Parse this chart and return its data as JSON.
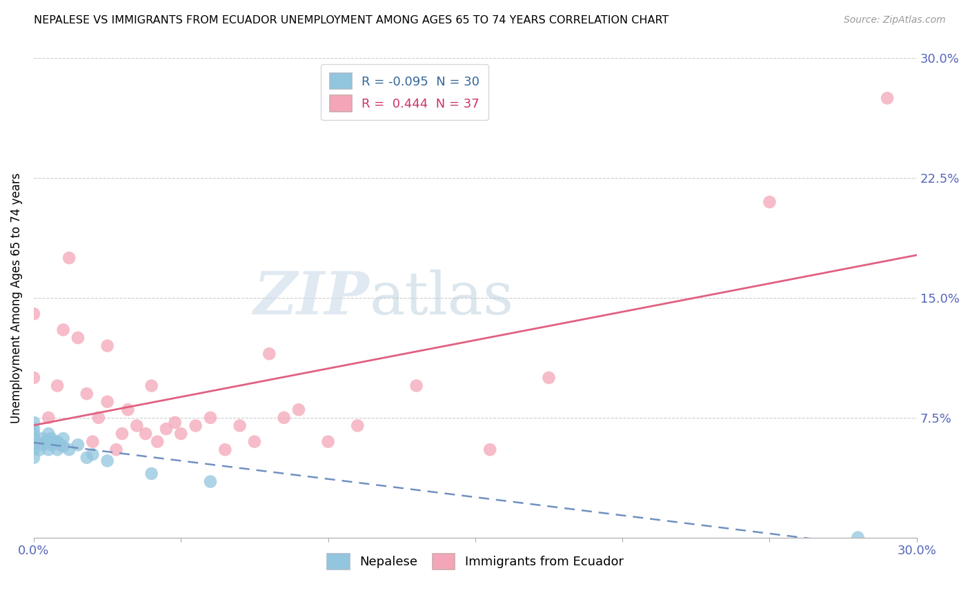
{
  "title": "NEPALESE VS IMMIGRANTS FROM ECUADOR UNEMPLOYMENT AMONG AGES 65 TO 74 YEARS CORRELATION CHART",
  "source": "Source: ZipAtlas.com",
  "ylabel": "Unemployment Among Ages 65 to 74 years",
  "xlim": [
    0,
    0.3
  ],
  "ylim": [
    0,
    0.3
  ],
  "xticks": [
    0.0,
    0.05,
    0.1,
    0.15,
    0.2,
    0.25,
    0.3
  ],
  "xticklabels": [
    "0.0%",
    "",
    "",
    "",
    "",
    "",
    "30.0%"
  ],
  "yticks": [
    0.0,
    0.075,
    0.15,
    0.225,
    0.3
  ],
  "yticklabels": [
    "",
    "7.5%",
    "15.0%",
    "22.5%",
    "30.0%"
  ],
  "blue_color": "#92c5de",
  "pink_color": "#f4a6b8",
  "blue_line_color": "#7090c0",
  "pink_line_color": "#e06080",
  "watermark_zip": "ZIP",
  "watermark_atlas": "atlas",
  "nepalese_x": [
    0.0,
    0.0,
    0.0,
    0.0,
    0.0,
    0.0,
    0.0,
    0.002,
    0.003,
    0.003,
    0.004,
    0.005,
    0.005,
    0.005,
    0.006,
    0.006,
    0.007,
    0.008,
    0.008,
    0.009,
    0.01,
    0.01,
    0.012,
    0.015,
    0.018,
    0.02,
    0.025,
    0.04,
    0.06,
    0.28
  ],
  "nepalese_y": [
    0.05,
    0.055,
    0.058,
    0.062,
    0.065,
    0.068,
    0.072,
    0.055,
    0.058,
    0.062,
    0.06,
    0.055,
    0.06,
    0.065,
    0.058,
    0.062,
    0.06,
    0.055,
    0.06,
    0.058,
    0.057,
    0.062,
    0.055,
    0.058,
    0.05,
    0.052,
    0.048,
    0.04,
    0.035,
    0.0
  ],
  "ecuador_x": [
    0.0,
    0.0,
    0.005,
    0.008,
    0.01,
    0.012,
    0.015,
    0.018,
    0.02,
    0.022,
    0.025,
    0.025,
    0.028,
    0.03,
    0.032,
    0.035,
    0.038,
    0.04,
    0.042,
    0.045,
    0.048,
    0.05,
    0.055,
    0.06,
    0.065,
    0.07,
    0.075,
    0.08,
    0.085,
    0.09,
    0.1,
    0.11,
    0.13,
    0.155,
    0.175,
    0.25,
    0.29
  ],
  "ecuador_y": [
    0.1,
    0.14,
    0.075,
    0.095,
    0.13,
    0.175,
    0.125,
    0.09,
    0.06,
    0.075,
    0.085,
    0.12,
    0.055,
    0.065,
    0.08,
    0.07,
    0.065,
    0.095,
    0.06,
    0.068,
    0.072,
    0.065,
    0.07,
    0.075,
    0.055,
    0.07,
    0.06,
    0.115,
    0.075,
    0.08,
    0.06,
    0.07,
    0.095,
    0.055,
    0.1,
    0.21,
    0.275
  ]
}
